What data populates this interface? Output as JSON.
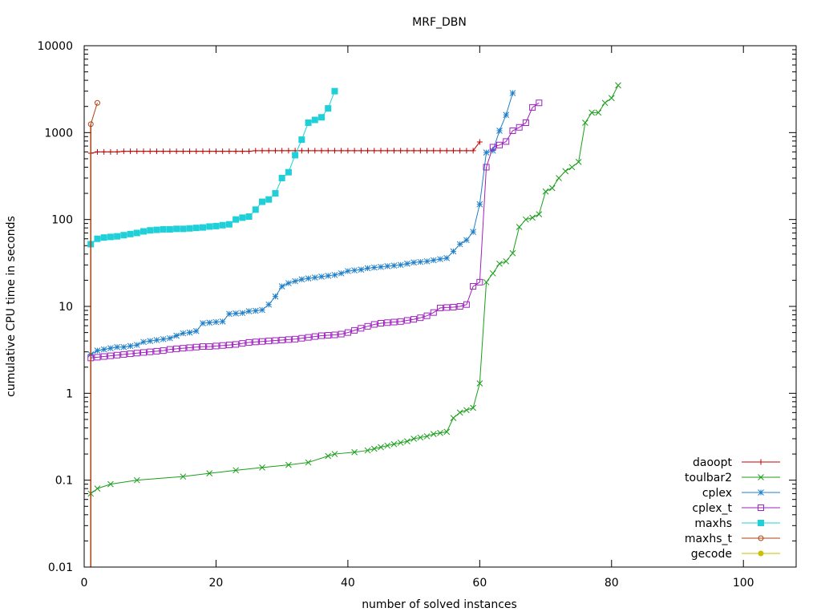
{
  "chart_data": {
    "type": "line",
    "title": "MRF_DBN",
    "xlabel": "number of solved instances",
    "ylabel": "cumulative CPU time in seconds",
    "xlim": [
      0,
      108
    ],
    "ylim": [
      0.01,
      10000
    ],
    "yscale": "log",
    "xticks": [
      0,
      20,
      40,
      60,
      80,
      100
    ],
    "xtick_labels": [
      "0",
      "20",
      "40",
      "60",
      "80",
      "100"
    ],
    "yticks": [
      0.01,
      0.1,
      1,
      10,
      100,
      1000,
      10000
    ],
    "ytick_labels": [
      "0.01",
      "0.1",
      "1",
      "10",
      "100",
      "1000",
      "10000"
    ],
    "legend_position": "bottom-right",
    "series": [
      {
        "name": "daoopt",
        "color": "#c00000",
        "marker": "plus",
        "x": [
          1,
          2,
          3,
          4,
          5,
          6,
          7,
          8,
          9,
          10,
          11,
          12,
          13,
          14,
          15,
          16,
          17,
          18,
          19,
          20,
          21,
          22,
          23,
          24,
          25,
          26,
          27,
          28,
          29,
          30,
          31,
          32,
          33,
          34,
          35,
          36,
          37,
          38,
          39,
          40,
          41,
          42,
          43,
          44,
          45,
          46,
          47,
          48,
          49,
          50,
          51,
          52,
          53,
          54,
          55,
          56,
          57,
          58,
          59,
          60
        ],
        "y": [
          580,
          600,
          600,
          600,
          600,
          610,
          610,
          610,
          610,
          610,
          610,
          610,
          610,
          610,
          610,
          610,
          610,
          610,
          610,
          610,
          610,
          610,
          610,
          610,
          610,
          620,
          620,
          620,
          620,
          620,
          620,
          620,
          620,
          620,
          620,
          620,
          620,
          620,
          620,
          620,
          620,
          620,
          620,
          620,
          620,
          620,
          620,
          620,
          620,
          620,
          620,
          620,
          620,
          620,
          620,
          620,
          620,
          620,
          620,
          780
        ]
      },
      {
        "name": "toulbar2",
        "color": "#1a9e1a",
        "marker": "x",
        "x": [
          1,
          2,
          4,
          8,
          15,
          19,
          23,
          27,
          31,
          34,
          37,
          38,
          41,
          43,
          44,
          45,
          46,
          47,
          48,
          49,
          50,
          51,
          52,
          53,
          54,
          55,
          56,
          57,
          58,
          59,
          60,
          61,
          62,
          63,
          64,
          65,
          66,
          67,
          68,
          69,
          70,
          71,
          72,
          73,
          74,
          75,
          76,
          77,
          78,
          79,
          80,
          81
        ],
        "y": [
          0.07,
          0.08,
          0.09,
          0.1,
          0.11,
          0.12,
          0.13,
          0.14,
          0.15,
          0.16,
          0.19,
          0.2,
          0.21,
          0.22,
          0.23,
          0.24,
          0.25,
          0.26,
          0.27,
          0.28,
          0.3,
          0.31,
          0.32,
          0.34,
          0.35,
          0.36,
          0.52,
          0.6,
          0.64,
          0.68,
          1.3,
          19,
          24,
          31,
          33,
          41,
          82,
          100,
          105,
          115,
          210,
          230,
          300,
          360,
          400,
          460,
          1300,
          1700,
          1700,
          2200,
          2500,
          3500
        ]
      },
      {
        "name": "cplex",
        "color": "#1f7fc8",
        "marker": "star",
        "x": [
          1,
          2,
          3,
          4,
          5,
          6,
          7,
          8,
          9,
          10,
          11,
          12,
          13,
          14,
          15,
          16,
          17,
          18,
          19,
          20,
          21,
          22,
          23,
          24,
          25,
          26,
          27,
          28,
          29,
          30,
          31,
          32,
          33,
          34,
          35,
          36,
          37,
          38,
          39,
          40,
          41,
          42,
          43,
          44,
          45,
          46,
          47,
          48,
          49,
          50,
          51,
          52,
          53,
          54,
          55,
          56,
          57,
          58,
          59,
          60,
          61,
          62,
          63,
          64,
          65
        ],
        "y": [
          2.8,
          3.1,
          3.2,
          3.3,
          3.4,
          3.4,
          3.5,
          3.6,
          3.9,
          4.0,
          4.1,
          4.2,
          4.3,
          4.6,
          4.9,
          5.0,
          5.2,
          6.4,
          6.5,
          6.6,
          6.7,
          8.2,
          8.3,
          8.4,
          8.8,
          8.9,
          9.1,
          10.5,
          13,
          17,
          18.5,
          19.5,
          20.5,
          21,
          21.5,
          22,
          22.5,
          23,
          24,
          25.5,
          26,
          26.5,
          27.5,
          28,
          28.5,
          29,
          29.5,
          30,
          31,
          32,
          32.5,
          33,
          34,
          35,
          36,
          43,
          52,
          58,
          72,
          150,
          590,
          620,
          1050,
          1600,
          2850
        ]
      },
      {
        "name": "cplex_t",
        "color": "#a020c0",
        "marker": "square",
        "x": [
          1,
          2,
          3,
          4,
          5,
          6,
          7,
          8,
          9,
          10,
          11,
          12,
          13,
          14,
          15,
          16,
          17,
          18,
          19,
          20,
          21,
          22,
          23,
          24,
          25,
          26,
          27,
          28,
          29,
          30,
          31,
          32,
          33,
          34,
          35,
          36,
          37,
          38,
          39,
          40,
          41,
          42,
          43,
          44,
          45,
          46,
          47,
          48,
          49,
          50,
          51,
          52,
          53,
          54,
          55,
          56,
          57,
          58,
          59,
          60,
          61,
          62,
          63,
          64,
          65,
          66,
          67,
          68,
          69
        ],
        "y": [
          2.55,
          2.6,
          2.65,
          2.7,
          2.75,
          2.8,
          2.85,
          2.9,
          2.95,
          3.0,
          3.05,
          3.1,
          3.2,
          3.25,
          3.3,
          3.35,
          3.4,
          3.45,
          3.45,
          3.5,
          3.55,
          3.6,
          3.65,
          3.75,
          3.85,
          3.9,
          3.95,
          4.0,
          4.05,
          4.1,
          4.15,
          4.2,
          4.3,
          4.4,
          4.5,
          4.6,
          4.65,
          4.7,
          4.8,
          5.0,
          5.3,
          5.6,
          5.9,
          6.2,
          6.4,
          6.5,
          6.6,
          6.7,
          6.9,
          7.1,
          7.4,
          7.8,
          8.5,
          9.6,
          9.7,
          9.8,
          10,
          10.5,
          17,
          19,
          400,
          680,
          720,
          790,
          1050,
          1150,
          1300,
          1950,
          2200
        ]
      },
      {
        "name": "maxhs",
        "color": "#20d0d8",
        "marker": "filled-square",
        "x": [
          1,
          2,
          3,
          4,
          5,
          6,
          7,
          8,
          9,
          10,
          11,
          12,
          13,
          14,
          15,
          16,
          17,
          18,
          19,
          20,
          21,
          22,
          23,
          24,
          25,
          26,
          27,
          28,
          29,
          30,
          31,
          32,
          33,
          34,
          35,
          36,
          37,
          38
        ],
        "y": [
          52,
          60,
          62,
          63,
          64,
          66,
          68,
          70,
          73,
          75,
          76,
          77,
          77,
          78,
          78,
          79,
          80,
          81,
          83,
          84,
          86,
          88,
          100,
          105,
          108,
          130,
          160,
          170,
          200,
          300,
          350,
          550,
          830,
          1300,
          1400,
          1500,
          1900,
          3000
        ]
      },
      {
        "name": "maxhs_t",
        "color": "#b04010",
        "marker": "circle",
        "x": [
          1,
          2
        ],
        "y": [
          1250,
          2200
        ]
      },
      {
        "name": "gecode",
        "color": "#c8c000",
        "marker": "filled-circle",
        "x": [],
        "y": []
      }
    ]
  }
}
